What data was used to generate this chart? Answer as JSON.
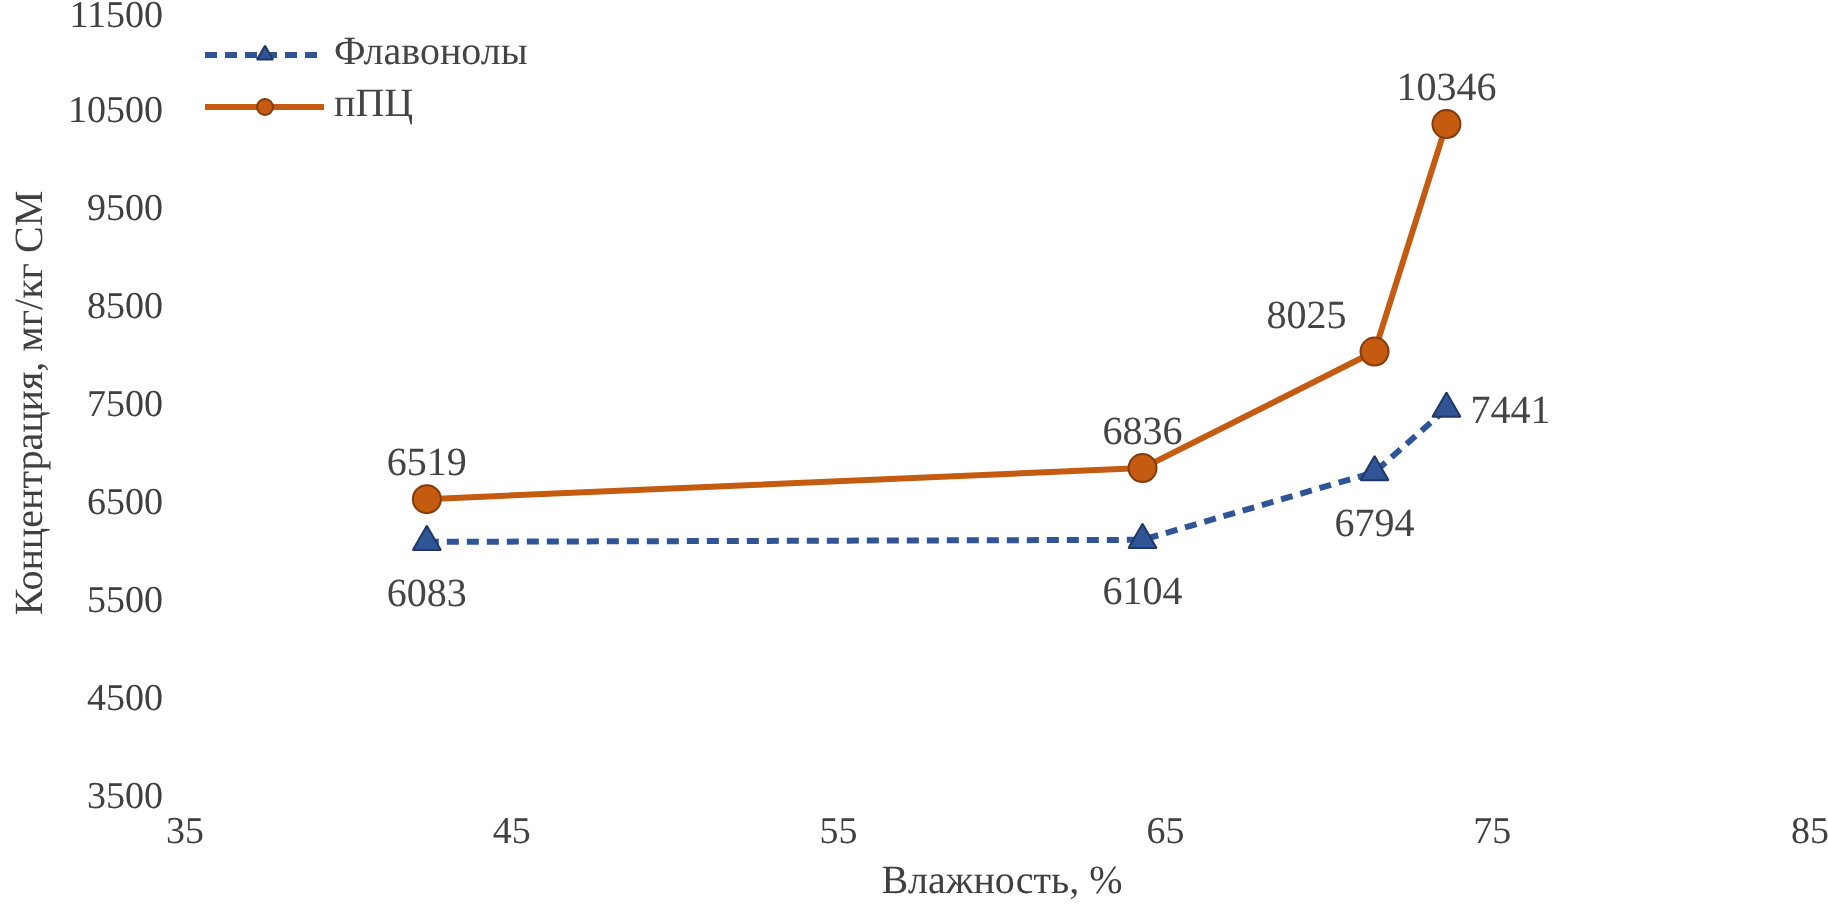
{
  "chart_data": {
    "type": "line",
    "xlabel": "Влажность, %",
    "ylabel": "Концентрация, мг/кг СМ",
    "x": [
      42.4,
      64.3,
      71.4,
      73.6
    ],
    "series": [
      {
        "name": "Флавонолы",
        "color": "#2f5597",
        "values": [
          6083,
          6104,
          6794,
          7441
        ],
        "marker": "triangle",
        "line_style": "dashed"
      },
      {
        "name": "пПЦ",
        "color": "#c55a11",
        "values": [
          6519,
          6836,
          8025,
          10346
        ],
        "marker": "circle",
        "line_style": "solid"
      }
    ],
    "xlim": [
      35,
      85
    ],
    "xticks": [
      35,
      45,
      55,
      65,
      75,
      85
    ],
    "ylim": [
      3500,
      11500
    ],
    "yticks": [
      3500,
      4500,
      5500,
      6500,
      7500,
      8500,
      9500,
      10500,
      11500
    ],
    "grid": false,
    "legend": "top left",
    "data_labels": true
  }
}
